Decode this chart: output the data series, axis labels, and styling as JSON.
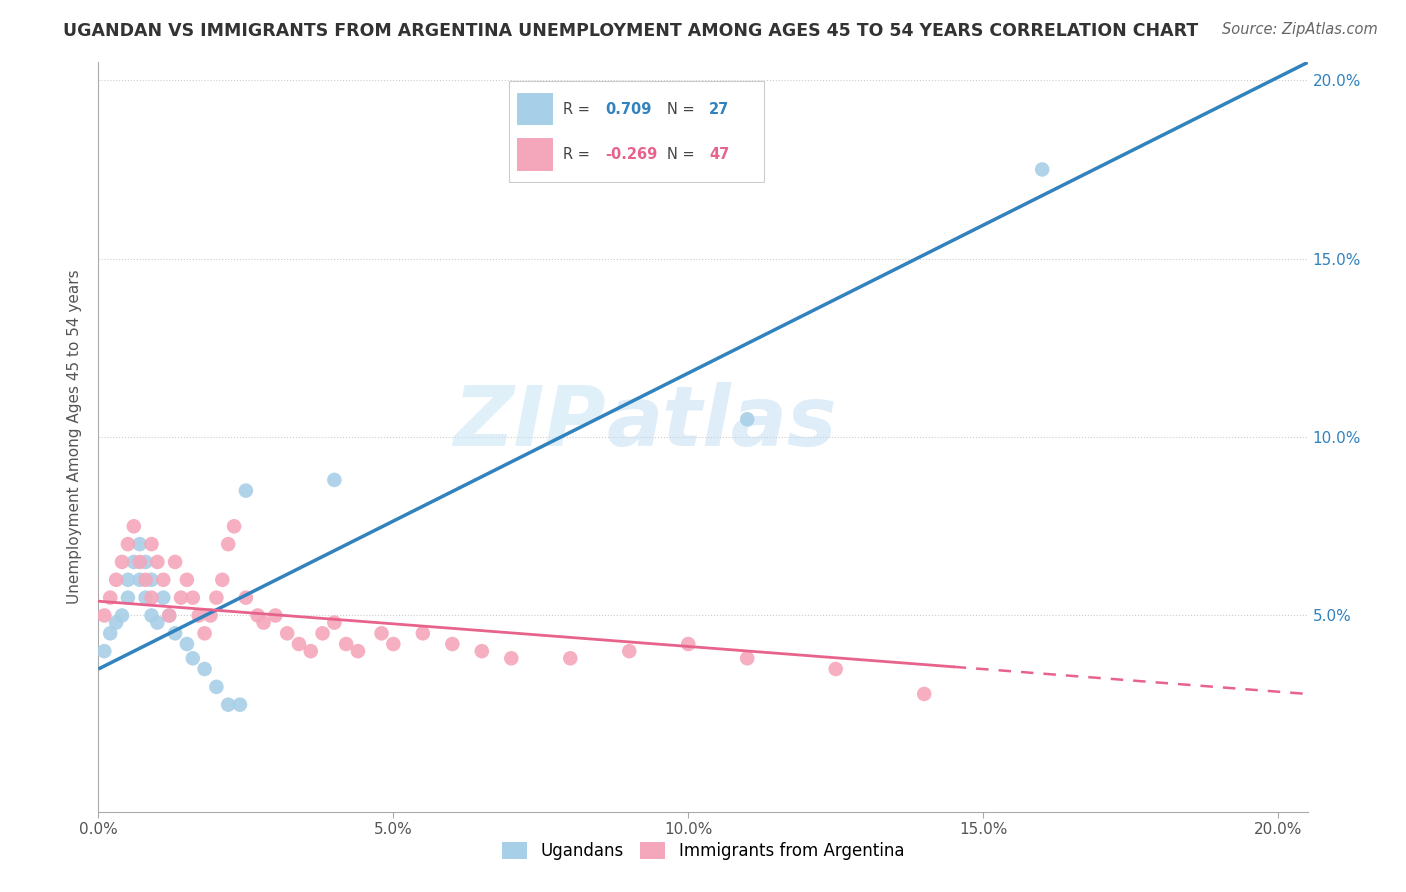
{
  "title": "UGANDAN VS IMMIGRANTS FROM ARGENTINA UNEMPLOYMENT AMONG AGES 45 TO 54 YEARS CORRELATION CHART",
  "source": "Source: ZipAtlas.com",
  "ylabel": "Unemployment Among Ages 45 to 54 years",
  "xlim": [
    0.0,
    0.205
  ],
  "ylim": [
    -0.005,
    0.205
  ],
  "xticks": [
    0.0,
    0.05,
    0.1,
    0.15,
    0.2
  ],
  "yticks": [
    0.0,
    0.05,
    0.1,
    0.15,
    0.2
  ],
  "xticklabels": [
    "0.0%",
    "5.0%",
    "10.0%",
    "15.0%",
    "20.0%"
  ],
  "right_yticklabels": [
    "",
    "5.0%",
    "10.0%",
    "15.0%",
    "20.0%"
  ],
  "ugandan_R": 0.709,
  "ugandan_N": 27,
  "argentina_R": -0.269,
  "argentina_N": 47,
  "ugandan_color": "#a8cfe8",
  "argentina_color": "#f4a7bb",
  "ugandan_line_color": "#3182bd",
  "argentina_line_color": "#e8638c",
  "tick_color": "#3182bd",
  "watermark_color": "#daeef8",
  "ugandan_x": [
    0.001,
    0.002,
    0.003,
    0.004,
    0.005,
    0.005,
    0.006,
    0.007,
    0.007,
    0.008,
    0.008,
    0.009,
    0.009,
    0.01,
    0.011,
    0.012,
    0.013,
    0.015,
    0.016,
    0.018,
    0.02,
    0.022,
    0.024,
    0.025,
    0.04,
    0.11,
    0.16
  ],
  "ugandan_y": [
    0.04,
    0.045,
    0.048,
    0.05,
    0.055,
    0.06,
    0.065,
    0.06,
    0.07,
    0.065,
    0.055,
    0.06,
    0.05,
    0.048,
    0.055,
    0.05,
    0.045,
    0.042,
    0.038,
    0.035,
    0.03,
    0.025,
    0.025,
    0.085,
    0.088,
    0.105,
    0.175
  ],
  "argentina_x": [
    0.001,
    0.002,
    0.003,
    0.004,
    0.005,
    0.006,
    0.007,
    0.008,
    0.009,
    0.009,
    0.01,
    0.011,
    0.012,
    0.013,
    0.014,
    0.015,
    0.016,
    0.017,
    0.018,
    0.019,
    0.02,
    0.021,
    0.022,
    0.023,
    0.025,
    0.027,
    0.028,
    0.03,
    0.032,
    0.034,
    0.036,
    0.038,
    0.04,
    0.042,
    0.044,
    0.048,
    0.05,
    0.055,
    0.06,
    0.065,
    0.07,
    0.08,
    0.09,
    0.1,
    0.11,
    0.125,
    0.14
  ],
  "argentina_y": [
    0.05,
    0.055,
    0.06,
    0.065,
    0.07,
    0.075,
    0.065,
    0.06,
    0.07,
    0.055,
    0.065,
    0.06,
    0.05,
    0.065,
    0.055,
    0.06,
    0.055,
    0.05,
    0.045,
    0.05,
    0.055,
    0.06,
    0.07,
    0.075,
    0.055,
    0.05,
    0.048,
    0.05,
    0.045,
    0.042,
    0.04,
    0.045,
    0.048,
    0.042,
    0.04,
    0.045,
    0.042,
    0.045,
    0.042,
    0.04,
    0.038,
    0.038,
    0.04,
    0.042,
    0.038,
    0.035,
    0.028
  ],
  "blue_line_x0": 0.0,
  "blue_line_y0": 0.035,
  "blue_line_x1": 0.205,
  "blue_line_y1": 0.205,
  "pink_line_x0": 0.0,
  "pink_line_y0": 0.054,
  "pink_line_x1": 0.205,
  "pink_line_y1": 0.028
}
